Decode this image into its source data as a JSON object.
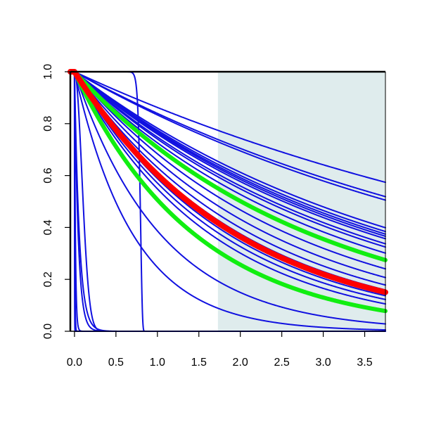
{
  "chart_data": {
    "type": "line",
    "title": "",
    "xlabel": "",
    "ylabel": "",
    "xlim": [
      -0.05,
      3.75
    ],
    "ylim": [
      0.0,
      1.0
    ],
    "x_ticks": [
      {
        "value": 0.0,
        "label": "0.0"
      },
      {
        "value": 0.5,
        "label": "0.5"
      },
      {
        "value": 1.0,
        "label": "1.0"
      },
      {
        "value": 1.5,
        "label": "1.5"
      },
      {
        "value": 2.0,
        "label": "2.0"
      },
      {
        "value": 2.5,
        "label": "2.5"
      },
      {
        "value": 3.0,
        "label": "3.0"
      },
      {
        "value": 3.5,
        "label": "3.5"
      }
    ],
    "y_ticks": [
      {
        "value": 0.0,
        "label": "0.0"
      },
      {
        "value": 0.2,
        "label": "0.2"
      },
      {
        "value": 0.4,
        "label": "0.4"
      },
      {
        "value": 0.6,
        "label": "0.6"
      },
      {
        "value": 0.8,
        "label": "0.8"
      },
      {
        "value": 1.0,
        "label": "1.0"
      }
    ],
    "shaded_region": {
      "x_from": 1.73,
      "x_to": 3.75,
      "color": "#dfeced"
    },
    "colors": {
      "blue": "#1010e0",
      "red": "#ff0000",
      "green": "#11ee11",
      "axis": "#000000"
    },
    "legend": "none",
    "grid": false,
    "series": [
      {
        "color": "blue",
        "kind": "exp",
        "rate": 0.148
      },
      {
        "color": "blue",
        "kind": "exp",
        "rate": 0.175
      },
      {
        "color": "blue",
        "kind": "exp",
        "rate": 0.182
      },
      {
        "color": "blue",
        "kind": "exp",
        "rate": 0.245
      },
      {
        "color": "blue",
        "kind": "exp",
        "rate": 0.255
      },
      {
        "color": "blue",
        "kind": "exp",
        "rate": 0.262
      },
      {
        "color": "blue",
        "kind": "exp",
        "rate": 0.268
      },
      {
        "color": "blue",
        "kind": "exp",
        "rate": 0.275
      },
      {
        "color": "blue",
        "kind": "exp",
        "rate": 0.29
      },
      {
        "color": "blue",
        "kind": "exp",
        "rate": 0.3
      },
      {
        "color": "blue",
        "kind": "exp",
        "rate": 0.32
      },
      {
        "color": "blue",
        "kind": "exp",
        "rate": 0.34
      },
      {
        "color": "blue",
        "kind": "exp",
        "rate": 0.38
      },
      {
        "color": "blue",
        "kind": "exp",
        "rate": 0.42
      },
      {
        "color": "blue",
        "kind": "exp",
        "rate": 0.46
      },
      {
        "color": "blue",
        "kind": "exp",
        "rate": 0.49
      },
      {
        "color": "blue",
        "kind": "exp",
        "rate": 0.53
      },
      {
        "color": "blue",
        "kind": "exp",
        "rate": 0.56
      },
      {
        "color": "blue",
        "kind": "exp",
        "rate": 0.6
      },
      {
        "color": "blue",
        "kind": "exp",
        "rate": 0.95
      },
      {
        "color": "blue",
        "kind": "exp",
        "rate": 1.4
      },
      {
        "color": "blue",
        "kind": "exp",
        "rate": 17.0
      },
      {
        "color": "blue",
        "kind": "exp",
        "rate": 22.0
      },
      {
        "color": "blue",
        "kind": "exp",
        "rate": 90.0
      },
      {
        "color": "blue",
        "kind": "exp",
        "rate": 250.0
      },
      {
        "color": "blue",
        "kind": "exp",
        "rate": 900.0
      },
      {
        "color": "blue",
        "kind": "weibull",
        "scale": 0.125,
        "shape": 2.0
      },
      {
        "color": "blue",
        "kind": "weibull",
        "scale": 0.8,
        "shape": 40.0
      },
      {
        "color": "green",
        "kind": "exp",
        "rate": 0.345
      },
      {
        "color": "green",
        "kind": "exp",
        "rate": 0.68
      },
      {
        "color": "red",
        "kind": "exp",
        "rate": 0.505
      }
    ]
  }
}
